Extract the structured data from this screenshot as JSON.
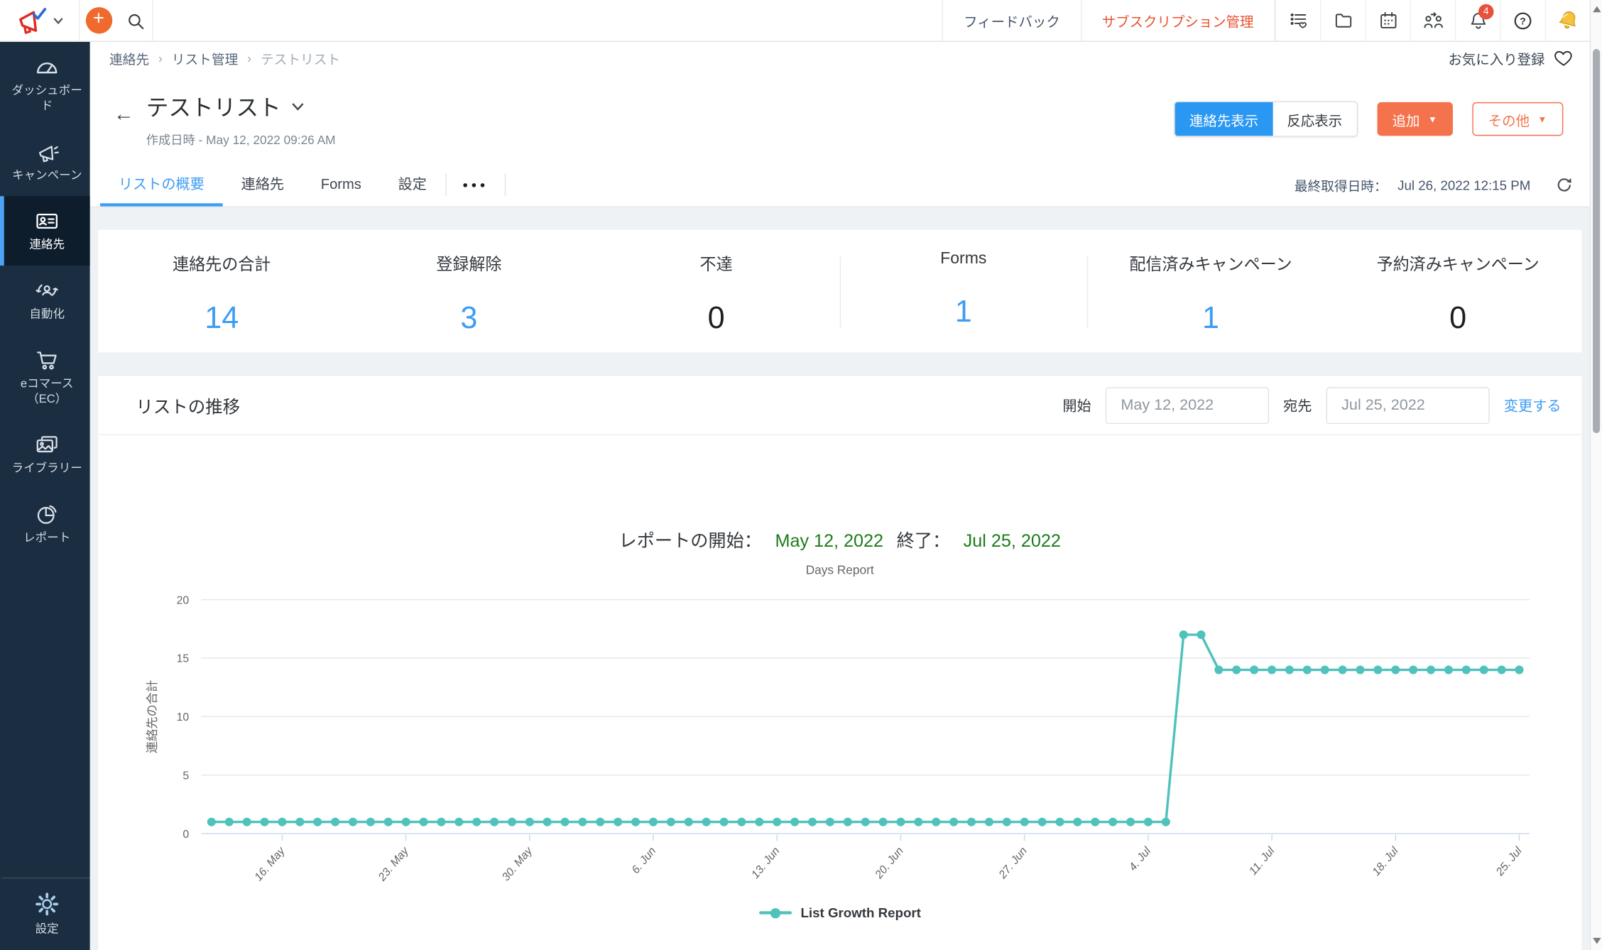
{
  "topbar": {
    "plus_label": "+",
    "feedback": "フィードバック",
    "subscription": "サブスクリプション管理",
    "bell_badge": "4"
  },
  "sidebar": {
    "items": [
      {
        "label": "ダッシュボード",
        "icon": "dashboard-icon"
      },
      {
        "label": "キャンペーン",
        "icon": "campaign-icon"
      },
      {
        "label": "連絡先",
        "icon": "contacts-icon"
      },
      {
        "label": "自動化",
        "icon": "automation-icon"
      },
      {
        "label": "eコマース（EC）",
        "icon": "ecommerce-icon"
      },
      {
        "label": "ライブラリー",
        "icon": "library-icon"
      },
      {
        "label": "レポート",
        "icon": "reports-icon"
      }
    ],
    "active_index": 2,
    "settings_label": "設定"
  },
  "breadcrumb": {
    "items": [
      "連絡先",
      "リスト管理",
      "テストリスト"
    ],
    "separator": "›",
    "favorite_label": "お気に入り登録"
  },
  "header": {
    "back_arrow": "←",
    "title": "テストリスト",
    "created": "作成日時 - May 12, 2022 09:26 AM",
    "toggle_left": "連絡先表示",
    "toggle_right": "反応表示",
    "add_button": "追加",
    "more_button": "その他",
    "caret": "▼"
  },
  "tabs": {
    "items": [
      "リストの概要",
      "連絡先",
      "Forms",
      "設定"
    ],
    "active_index": 0,
    "overflow_dots": "●●●",
    "last_fetched_label": "最終取得日時：",
    "last_fetched_value": "Jul 26, 2022 12:15 PM"
  },
  "stats": [
    {
      "label": "連絡先の合計",
      "value": "14",
      "color": "blue"
    },
    {
      "label": "登録解除",
      "value": "3",
      "color": "blue"
    },
    {
      "label": "不達",
      "value": "0",
      "color": "dark"
    },
    {
      "label": "Forms",
      "value": "1",
      "color": "blue"
    },
    {
      "label": "配信済みキャンペーン",
      "value": "1",
      "color": "blue"
    },
    {
      "label": "予約済みキャンペーン",
      "value": "0",
      "color": "dark"
    }
  ],
  "list_growth": {
    "section_title": "リストの推移",
    "start_label": "開始",
    "start_value": "May 12, 2022",
    "end_label": "宛先",
    "end_value": "Jul 25, 2022",
    "change_link": "変更する"
  },
  "colors": {
    "accent_blue": "#3d9df3",
    "accent_orange": "#f4724c",
    "green": "#1a7d1a",
    "line_teal": "#50c2bb"
  },
  "chart_data": {
    "type": "line",
    "title_prefix": "レポートの開始：",
    "title_start": "May 12, 2022",
    "title_mid": "終了：",
    "title_end": "Jul 25, 2022",
    "subtitle": "Days Report",
    "ylabel": "連絡先の合計",
    "ylim": [
      0,
      20
    ],
    "yticks": [
      0,
      5,
      10,
      15,
      20
    ],
    "x_start": "May 12, 2022",
    "x_end": "Jul 25, 2022",
    "x_tick_labels": [
      "16. May",
      "23. May",
      "30. May",
      "6. Jun",
      "13. Jun",
      "20. Jun",
      "27. Jun",
      "4. Jul",
      "11. Jul",
      "18. Jul",
      "25. Jul"
    ],
    "x_tick_indices": [
      4,
      11,
      18,
      25,
      32,
      39,
      46,
      53,
      60,
      67,
      74
    ],
    "legend": "List Growth Report",
    "line_color": "#50c2bb",
    "grid": true,
    "legend_position": "bottom",
    "values": [
      1,
      1,
      1,
      1,
      1,
      1,
      1,
      1,
      1,
      1,
      1,
      1,
      1,
      1,
      1,
      1,
      1,
      1,
      1,
      1,
      1,
      1,
      1,
      1,
      1,
      1,
      1,
      1,
      1,
      1,
      1,
      1,
      1,
      1,
      1,
      1,
      1,
      1,
      1,
      1,
      1,
      1,
      1,
      1,
      1,
      1,
      1,
      1,
      1,
      1,
      1,
      1,
      1,
      1,
      1,
      17,
      17,
      14,
      14,
      14,
      14,
      14,
      14,
      14,
      14,
      14,
      14,
      14,
      14,
      14,
      14,
      14,
      14,
      14,
      14
    ]
  }
}
